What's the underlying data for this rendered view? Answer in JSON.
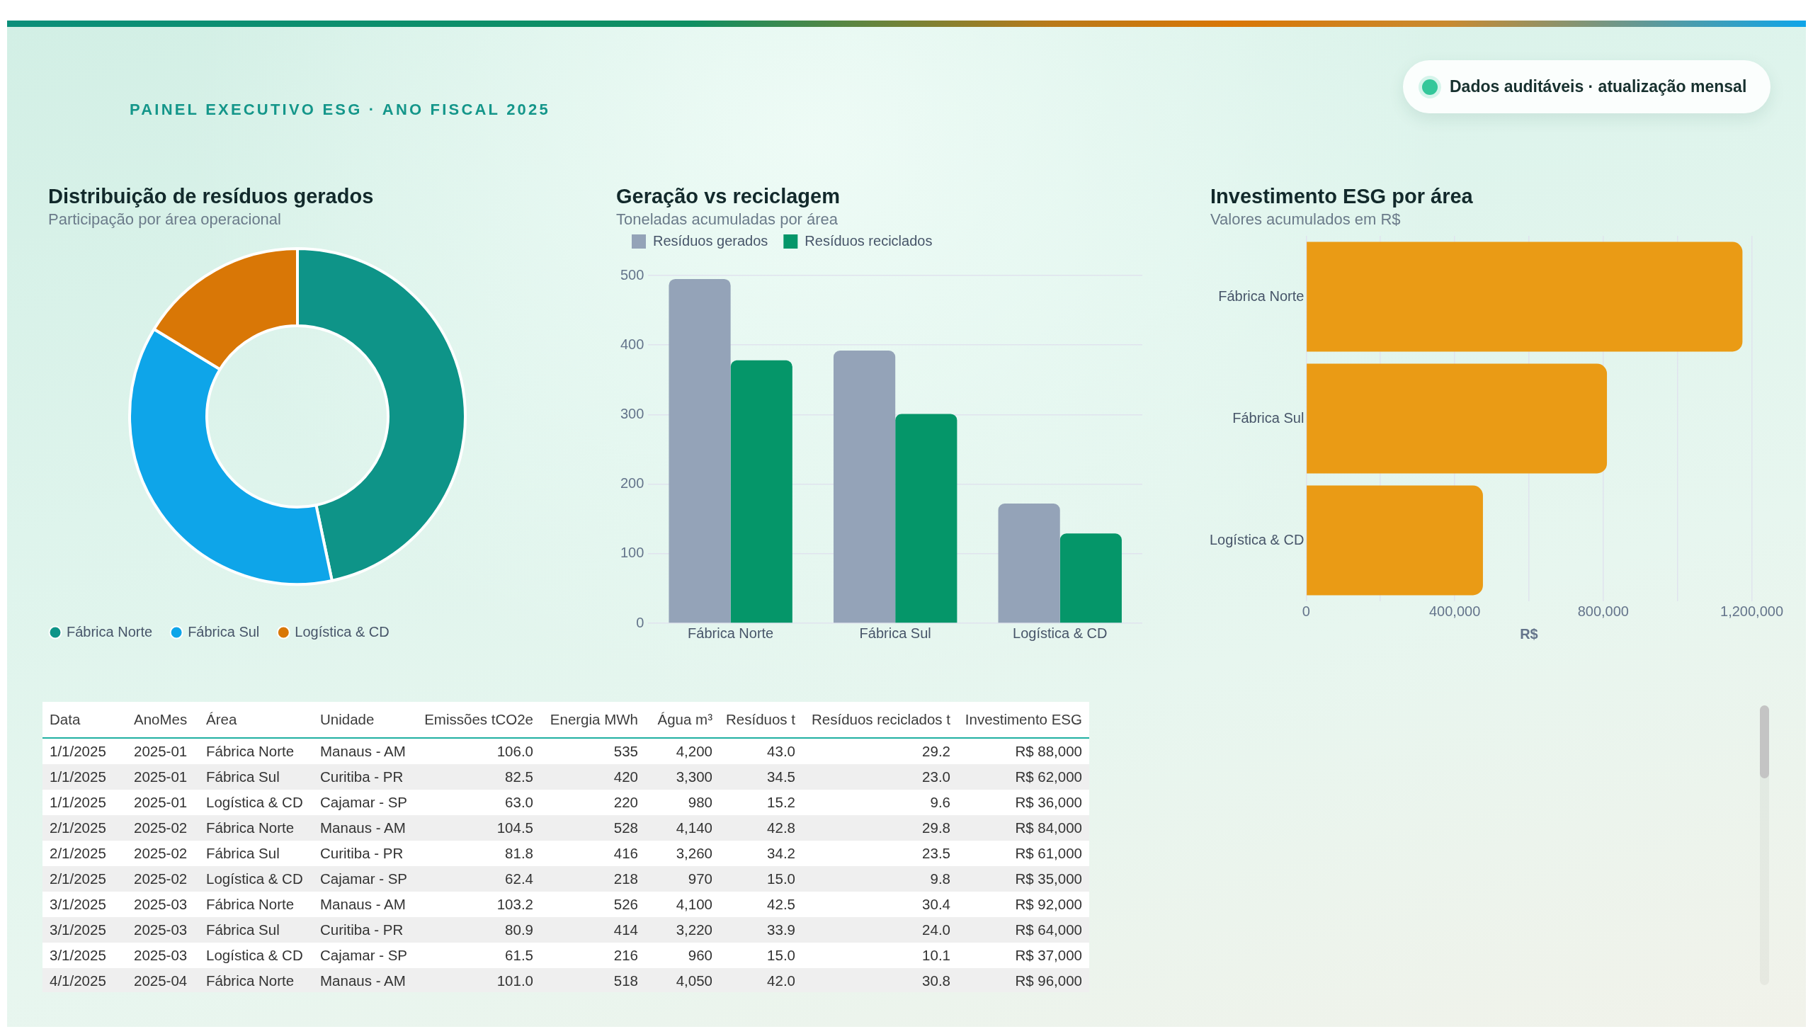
{
  "chart_data": [
    {
      "type": "other",
      "subtitle": "PAINEL EXECUTIVO ESG · ANO FISCAL 2025",
      "annotations": [
        "Dados auditáveis · atualização mensal"
      ]
    },
    {
      "type": "donut",
      "title": "Distribuição de resíduos gerados",
      "subtitle": "Participação por área operacional",
      "categories": [
        "Fábrica Norte",
        "Fábrica Sul",
        "Logística & CD"
      ],
      "values": [
        46.7,
        37.0,
        16.3
      ],
      "colors": [
        "#0e9488",
        "#0ea5e9",
        "#d97706"
      ],
      "legend": "bottom left"
    },
    {
      "type": "bar",
      "title": "Geração vs reciclagem",
      "subtitle": "Toneladas acumuladas por área",
      "categories": [
        "Fábrica Norte",
        "Fábrica Sul",
        "Logística & CD"
      ],
      "series": [
        {
          "name": "Resíduos gerados",
          "color": "#94a3b8",
          "values": [
            495,
            392,
            172
          ]
        },
        {
          "name": "Resíduos reciclados",
          "color": "#059669",
          "values": [
            378,
            301,
            129
          ]
        }
      ],
      "ylim": [
        0,
        500
      ],
      "yticks": [
        0,
        100,
        200,
        300,
        400,
        500
      ],
      "grid": "y",
      "legend": "top left"
    },
    {
      "type": "bar",
      "orientation": "horizontal",
      "title": "Investimento ESG por área",
      "subtitle": "Valores acumulados em R$",
      "xlabel": "R$",
      "categories": [
        "Fábrica Norte",
        "Fábrica Sul",
        "Logística & CD"
      ],
      "values": [
        1175000,
        810000,
        476000
      ],
      "color": "#ea9b15",
      "xlim": [
        0,
        1200000
      ],
      "xticks": [
        0,
        {
          "value": 200000,
          "label": null
        },
        {
          "value": 400000,
          "label": "400,000"
        },
        {
          "value": 600000,
          "label": null
        },
        {
          "value": 800000,
          "label": "800,000"
        },
        {
          "value": 1000000,
          "label": null
        },
        {
          "value": 1200000,
          "label": "1,200,000"
        }
      ],
      "grid": "x"
    },
    {
      "type": "other",
      "categories": [
        "Data",
        "AnoMes",
        "Área",
        "Unidade",
        "Emissões tCO2e",
        "Energia MWh",
        "Água m³",
        "Resíduos t",
        "Resíduos reciclados t",
        "Investimento ESG"
      ],
      "cell_labels": [
        [
          "1/1/2025",
          "2025-01",
          "Fábrica Norte",
          "Manaus - AM",
          "106.0",
          "535",
          "4,200",
          "43.0",
          "29.2",
          "R$ 88,000"
        ],
        [
          "1/1/2025",
          "2025-01",
          "Fábrica Sul",
          "Curitiba - PR",
          "82.5",
          "420",
          "3,300",
          "34.5",
          "23.0",
          "R$ 62,000"
        ],
        [
          "1/1/2025",
          "2025-01",
          "Logística & CD",
          "Cajamar - SP",
          "63.0",
          "220",
          "980",
          "15.2",
          "9.6",
          "R$ 36,000"
        ],
        [
          "2/1/2025",
          "2025-02",
          "Fábrica Norte",
          "Manaus - AM",
          "104.5",
          "528",
          "4,140",
          "42.8",
          "29.8",
          "R$ 84,000"
        ],
        [
          "2/1/2025",
          "2025-02",
          "Fábrica Sul",
          "Curitiba - PR",
          "81.8",
          "416",
          "3,260",
          "34.2",
          "23.5",
          "R$ 61,000"
        ],
        [
          "2/1/2025",
          "2025-02",
          "Logística & CD",
          "Cajamar - SP",
          "62.4",
          "218",
          "970",
          "15.0",
          "9.8",
          "R$ 35,000"
        ],
        [
          "3/1/2025",
          "2025-03",
          "Fábrica Norte",
          "Manaus - AM",
          "103.2",
          "526",
          "4,100",
          "42.5",
          "30.4",
          "R$ 92,000"
        ],
        [
          "3/1/2025",
          "2025-03",
          "Fábrica Sul",
          "Curitiba - PR",
          "80.9",
          "414",
          "3,220",
          "33.9",
          "24.0",
          "R$ 64,000"
        ],
        [
          "3/1/2025",
          "2025-03",
          "Logística & CD",
          "Cajamar - SP",
          "61.5",
          "216",
          "960",
          "15.0",
          "10.1",
          "R$ 37,000"
        ],
        [
          "4/1/2025",
          "2025-04",
          "Fábrica Norte",
          "Manaus - AM",
          "101.0",
          "518",
          "4,050",
          "42.0",
          "30.8",
          "R$ 96,000"
        ]
      ]
    }
  ]
}
